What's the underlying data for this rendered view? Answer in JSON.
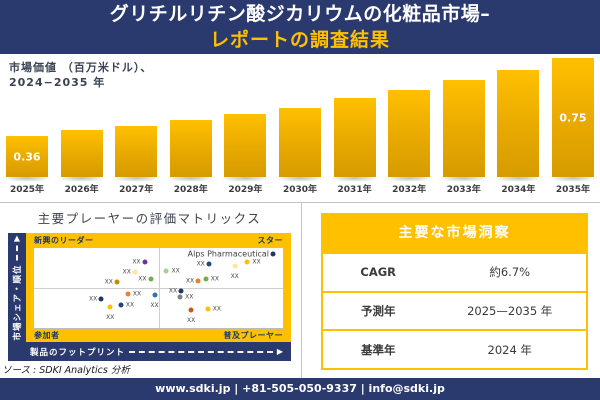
{
  "header": {
    "title_line1": "グリチルリチン酸ジカリウムの化粧品市場–",
    "title_line2": "レポートの調査結果"
  },
  "bar_section": {
    "label_line1": "市場価値 （百万米ドル）、",
    "label_line2": "2024−2035 年"
  },
  "chart_data": [
    {
      "type": "bar",
      "title": "市場価値（百万米ドル）、2024−2035年",
      "categories": [
        "2025年",
        "2026年",
        "2027年",
        "2028年",
        "2029年",
        "2030年",
        "2031年",
        "2032年",
        "2033年",
        "2034年",
        "2035年"
      ],
      "values": [
        0.36,
        0.39,
        0.41,
        0.44,
        0.47,
        0.5,
        0.55,
        0.59,
        0.64,
        0.69,
        0.75
      ],
      "data_labels": {
        "0": "0.36",
        "10": "0.75"
      },
      "bar_color": "#E8A900",
      "ylim": [
        0,
        0.8
      ],
      "grid": false
    },
    {
      "type": "scatter",
      "title": "主要プレーヤーの評価マトリックス",
      "xlabel": "製品のフットプリント",
      "ylabel": "市場シェア・順位",
      "points": [
        {
          "x": 44.4,
          "y": 16.9,
          "color": "#7030A0",
          "label": "XX",
          "label_pos": "left"
        },
        {
          "x": 40.5,
          "y": 30.1,
          "color": "#FFE699",
          "label": "XX",
          "label_pos": "left"
        },
        {
          "x": 33.3,
          "y": 42.2,
          "color": "#BF8F00",
          "label": "XX",
          "label_pos": "left"
        },
        {
          "x": 46.8,
          "y": 38.6,
          "color": "#70AD47",
          "label": "XX",
          "label_pos": "left"
        },
        {
          "x": 53.2,
          "y": 28.9,
          "color": "#A9D18E",
          "label": "XX",
          "label_pos": "right"
        },
        {
          "x": 70.2,
          "y": 20.5,
          "color": "#1F4E79",
          "label": "XX",
          "label_pos": "left"
        },
        {
          "x": 80.6,
          "y": 22.9,
          "color": "#FFE699",
          "label": "XX",
          "label_pos": "below"
        },
        {
          "x": 85.7,
          "y": 16.9,
          "color": "#FFC000",
          "label": "XX",
          "label_pos": "right"
        },
        {
          "x": 65.9,
          "y": 41.0,
          "color": "#ED7D31",
          "label": "XX",
          "label_pos": "left"
        },
        {
          "x": 69.0,
          "y": 38.6,
          "color": "#70AD47",
          "label": "XX",
          "label_pos": "right"
        },
        {
          "x": 96.0,
          "y": 7.0,
          "color": "#203864",
          "label": "Alps Pharmaceutical",
          "label_pos": "left",
          "label_size": "lg"
        },
        {
          "x": 37.7,
          "y": 57.8,
          "color": "#ED7D31",
          "label": "XX",
          "label_pos": "right"
        },
        {
          "x": 48.4,
          "y": 59.0,
          "color": "#2E75B6",
          "label": "XX",
          "label_pos": "below"
        },
        {
          "x": 27.0,
          "y": 63.9,
          "color": "#1F3864",
          "label": "XX",
          "label_pos": "left"
        },
        {
          "x": 34.9,
          "y": 71.1,
          "color": "#264478",
          "label": "XX",
          "label_pos": "right"
        },
        {
          "x": 30.6,
          "y": 73.5,
          "color": "#FFC000",
          "label": "XX",
          "label_pos": "below"
        },
        {
          "x": 59.1,
          "y": 54.2,
          "color": "#203864",
          "label": "XX",
          "label_pos": "left"
        },
        {
          "x": 58.7,
          "y": 61.4,
          "color": "#7F7F7F",
          "label": "XX",
          "label_pos": "right"
        },
        {
          "x": 63.1,
          "y": 77.1,
          "color": "#C55A11",
          "label": "XX",
          "label_pos": "below"
        },
        {
          "x": 69.8,
          "y": 75.9,
          "color": "#FFC000",
          "label": "XX",
          "label_pos": "right"
        }
      ]
    }
  ],
  "matrix": {
    "title": "主要プレーヤーの評価マトリックス",
    "quadrant_top_left": "新興のリーダー",
    "quadrant_top_right": "スター",
    "quadrant_bottom_left": "参加者",
    "quadrant_bottom_right": "普及プレーヤー",
    "x_axis_label": "製品のフットプリント",
    "y_axis_label": "市場シェア・順位",
    "arrow": "▶"
  },
  "insights": {
    "title": "主要な市場洞察",
    "rows": [
      {
        "label": "CAGR",
        "value": "約6.7%"
      },
      {
        "label": "予測年",
        "value": "2025—2035 年"
      },
      {
        "label": "基準年",
        "value": "2024 年"
      }
    ]
  },
  "source": "ソース : SDKI Analytics 分析",
  "footer": {
    "items": [
      "www.sdki.jp",
      "+81-505-050-9337",
      "info@sdki.jp"
    ],
    "separator": "|"
  },
  "colors": {
    "navy": "#2B3A6E",
    "gold": "#FFC000",
    "bar_gold": "#E8A900"
  }
}
